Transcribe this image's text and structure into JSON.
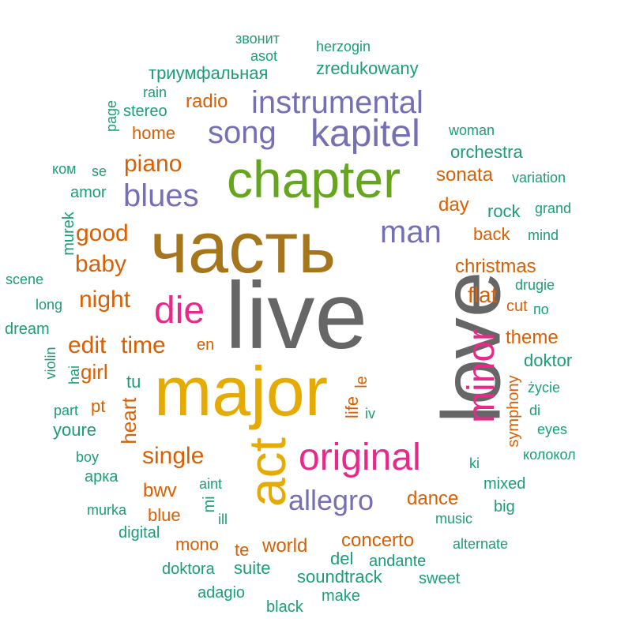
{
  "palette": {
    "teal": "#1b9e77",
    "orange": "#d95f02",
    "purple": "#7570b3",
    "pink": "#e7298a",
    "green": "#66a61e",
    "gold": "#e6ab02",
    "brown": "#a6761d",
    "gray": "#666666"
  },
  "words": [
    {
      "text": "live",
      "color": "gray"
    },
    {
      "text": "love",
      "color": "gray"
    },
    {
      "text": "часть",
      "color": "brown"
    },
    {
      "text": "major",
      "color": "gold"
    },
    {
      "text": "chapter",
      "color": "green"
    },
    {
      "text": "act",
      "color": "gold"
    },
    {
      "text": "original",
      "color": "pink"
    },
    {
      "text": "minor",
      "color": "pink"
    },
    {
      "text": "kapitel",
      "color": "purple"
    },
    {
      "text": "instrumental",
      "color": "purple"
    },
    {
      "text": "song",
      "color": "purple"
    },
    {
      "text": "blues",
      "color": "purple"
    },
    {
      "text": "man",
      "color": "purple"
    },
    {
      "text": "die",
      "color": "pink"
    },
    {
      "text": "allegro",
      "color": "purple"
    },
    {
      "text": "piano",
      "color": "orange"
    },
    {
      "text": "good",
      "color": "orange"
    },
    {
      "text": "baby",
      "color": "orange"
    },
    {
      "text": "night",
      "color": "orange"
    },
    {
      "text": "edit",
      "color": "orange"
    },
    {
      "text": "time",
      "color": "orange"
    },
    {
      "text": "girl",
      "color": "orange"
    },
    {
      "text": "single",
      "color": "orange"
    },
    {
      "text": "heart",
      "color": "orange"
    },
    {
      "text": "flat",
      "color": "orange"
    },
    {
      "text": "christmas",
      "color": "orange"
    },
    {
      "text": "theme",
      "color": "orange"
    },
    {
      "text": "sonata",
      "color": "orange"
    },
    {
      "text": "day",
      "color": "orange"
    },
    {
      "text": "back",
      "color": "orange"
    },
    {
      "text": "radio",
      "color": "orange"
    },
    {
      "text": "home",
      "color": "orange"
    },
    {
      "text": "bwv",
      "color": "orange"
    },
    {
      "text": "blue",
      "color": "orange"
    },
    {
      "text": "mono",
      "color": "orange"
    },
    {
      "text": "world",
      "color": "orange"
    },
    {
      "text": "concerto",
      "color": "orange"
    },
    {
      "text": "dance",
      "color": "orange"
    },
    {
      "text": "te",
      "color": "orange"
    },
    {
      "text": "pt",
      "color": "orange"
    },
    {
      "text": "en",
      "color": "orange"
    },
    {
      "text": "le",
      "color": "orange"
    },
    {
      "text": "life",
      "color": "orange"
    },
    {
      "text": "cut",
      "color": "orange"
    },
    {
      "text": "symphony",
      "color": "orange"
    },
    {
      "text": "триумфальная",
      "color": "teal"
    },
    {
      "text": "zredukowany",
      "color": "teal"
    },
    {
      "text": "звонит",
      "color": "teal"
    },
    {
      "text": "herzogin",
      "color": "teal"
    },
    {
      "text": "asot",
      "color": "teal"
    },
    {
      "text": "rain",
      "color": "teal"
    },
    {
      "text": "stereo",
      "color": "teal"
    },
    {
      "text": "page",
      "color": "teal"
    },
    {
      "text": "woman",
      "color": "teal"
    },
    {
      "text": "orchestra",
      "color": "teal"
    },
    {
      "text": "variation",
      "color": "teal"
    },
    {
      "text": "rock",
      "color": "teal"
    },
    {
      "text": "grand",
      "color": "teal"
    },
    {
      "text": "mind",
      "color": "teal"
    },
    {
      "text": "drugie",
      "color": "teal"
    },
    {
      "text": "по",
      "color": "teal"
    },
    {
      "text": "doktor",
      "color": "teal"
    },
    {
      "text": "życie",
      "color": "teal"
    },
    {
      "text": "di",
      "color": "teal"
    },
    {
      "text": "eyes",
      "color": "teal"
    },
    {
      "text": "колокол",
      "color": "teal"
    },
    {
      "text": "ki",
      "color": "teal"
    },
    {
      "text": "mixed",
      "color": "teal"
    },
    {
      "text": "big",
      "color": "teal"
    },
    {
      "text": "music",
      "color": "teal"
    },
    {
      "text": "alternate",
      "color": "teal"
    },
    {
      "text": "andante",
      "color": "teal"
    },
    {
      "text": "sweet",
      "color": "teal"
    },
    {
      "text": "make",
      "color": "teal"
    },
    {
      "text": "black",
      "color": "teal"
    },
    {
      "text": "adagio",
      "color": "teal"
    },
    {
      "text": "doktora",
      "color": "teal"
    },
    {
      "text": "suite",
      "color": "teal"
    },
    {
      "text": "soundtrack",
      "color": "teal"
    },
    {
      "text": "del",
      "color": "teal"
    },
    {
      "text": "digital",
      "color": "teal"
    },
    {
      "text": "murka",
      "color": "teal"
    },
    {
      "text": "ill",
      "color": "teal"
    },
    {
      "text": "aint",
      "color": "teal"
    },
    {
      "text": "mi",
      "color": "teal"
    },
    {
      "text": "арка",
      "color": "teal"
    },
    {
      "text": "boy",
      "color": "teal"
    },
    {
      "text": "youre",
      "color": "teal"
    },
    {
      "text": "part",
      "color": "teal"
    },
    {
      "text": "tu",
      "color": "teal"
    },
    {
      "text": "hai",
      "color": "teal"
    },
    {
      "text": "violin",
      "color": "teal"
    },
    {
      "text": "dream",
      "color": "teal"
    },
    {
      "text": "long",
      "color": "teal"
    },
    {
      "text": "scene",
      "color": "teal"
    },
    {
      "text": "murek",
      "color": "teal"
    },
    {
      "text": "amor",
      "color": "teal"
    },
    {
      "text": "se",
      "color": "teal"
    },
    {
      "text": "ком",
      "color": "teal"
    },
    {
      "text": "iv",
      "color": "teal"
    }
  ]
}
